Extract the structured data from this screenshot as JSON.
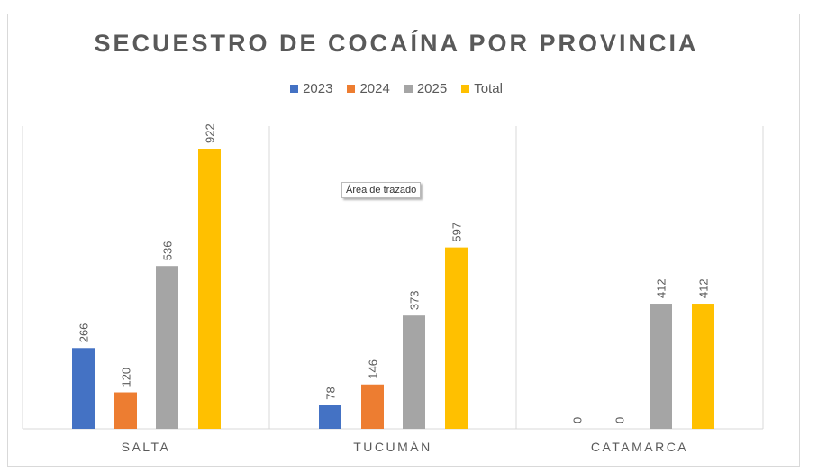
{
  "chart_data": {
    "type": "bar",
    "title": "SECUESTRO DE COCAÍNA POR PROVINCIA",
    "categories": [
      "SALTA",
      "TUCUMÁN",
      "CATAMARCA"
    ],
    "series": [
      {
        "name": "2023",
        "color": "#4472c4",
        "values": [
          266,
          78,
          0
        ]
      },
      {
        "name": "2024",
        "color": "#ed7d31",
        "values": [
          120,
          146,
          0
        ]
      },
      {
        "name": "2025",
        "color": "#a5a5a5",
        "values": [
          536,
          373,
          412
        ]
      },
      {
        "name": "Total",
        "color": "#ffc000",
        "values": [
          922,
          597,
          412
        ]
      }
    ],
    "ylim": [
      0,
      1000
    ],
    "grid": false,
    "legend": "top",
    "data_labels": true
  },
  "tooltip": "Área de trazado"
}
